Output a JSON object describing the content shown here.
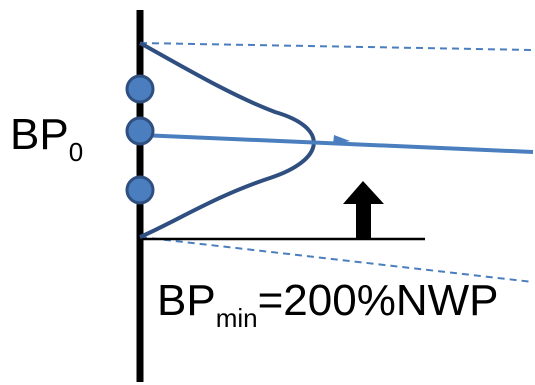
{
  "labels": {
    "bp0_main": "BP",
    "bp0_sub": "0",
    "bpmin_main": "BP",
    "bpmin_sub": "min",
    "bpmin_value": "=200%NWP"
  },
  "colors": {
    "line_blue": "#4a7ebf",
    "curve_blue": "#2f4f80",
    "circle_fill": "#4a7ebf",
    "circle_stroke": "#2f4f80",
    "black": "#000000"
  },
  "icons": {
    "up_arrow": "up-arrow-icon"
  }
}
